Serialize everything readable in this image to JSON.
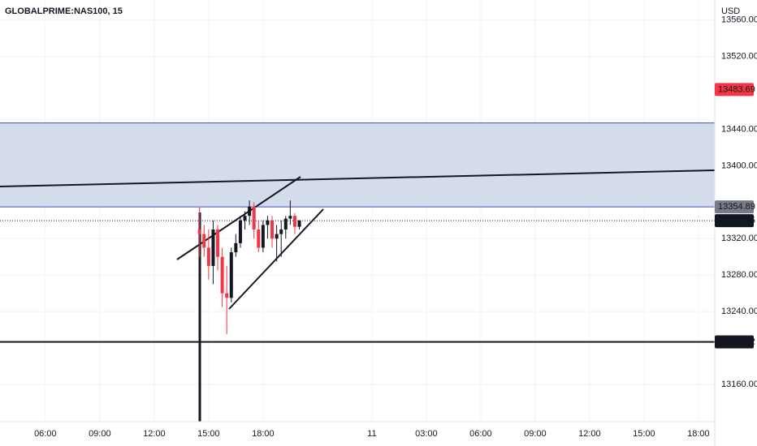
{
  "chart_data": {
    "type": "candlestick",
    "title": "GLOBALPRIME:NAS100, 15",
    "currency": "USD",
    "up_color": "#131722",
    "down_color": "#f23645",
    "grid": true,
    "xlim": [
      3.5,
      42.9
    ],
    "ylim": [
      13119,
      13582
    ],
    "xticks": [
      {
        "value": 6,
        "label": "06:00"
      },
      {
        "value": 9,
        "label": "09:00"
      },
      {
        "value": 12,
        "label": "12:00"
      },
      {
        "value": 15,
        "label": "15:00"
      },
      {
        "value": 18,
        "label": "18:00"
      },
      {
        "value": 24,
        "label": "11"
      },
      {
        "value": 27,
        "label": "03:00"
      },
      {
        "value": 30,
        "label": "06:00"
      },
      {
        "value": 33,
        "label": "09:00"
      },
      {
        "value": 36,
        "label": "12:00"
      },
      {
        "value": 39,
        "label": "15:00"
      },
      {
        "value": 42,
        "label": "18:00"
      }
    ],
    "yticks": [
      {
        "value": 13560,
        "label": "13560.00"
      },
      {
        "value": 13520,
        "label": "13520.00"
      },
      {
        "value": 13440,
        "label": "13440.00"
      },
      {
        "value": 13400,
        "label": "13400.00"
      },
      {
        "value": 13320,
        "label": "13320.00"
      },
      {
        "value": 13280,
        "label": "13280.00"
      },
      {
        "value": 13240,
        "label": "13240.00"
      },
      {
        "value": 13160,
        "label": "13160.00"
      }
    ],
    "x": [
      14.5,
      14.75,
      15.0,
      15.25,
      15.5,
      15.75,
      16.0,
      16.25,
      16.5,
      16.75,
      17.0,
      17.25,
      17.5,
      17.75,
      18.0,
      18.25,
      18.5,
      18.75,
      19.0,
      19.25,
      19.5,
      19.75,
      20.0
    ],
    "open": [
      13330,
      13325,
      13310,
      13290,
      13330,
      13300,
      13260,
      13255,
      13305,
      13315,
      13340,
      13345,
      13355,
      13330,
      13310,
      13335,
      13340,
      13320,
      13325,
      13330,
      13342,
      13345,
      13333
    ],
    "high": [
      13355,
      13335,
      13330,
      13340,
      13335,
      13310,
      13290,
      13310,
      13325,
      13345,
      13350,
      13362,
      13360,
      13340,
      13340,
      13345,
      13345,
      13335,
      13340,
      13345,
      13362,
      13348,
      13340
    ],
    "low": [
      13300,
      13300,
      13275,
      13270,
      13285,
      13245,
      13215,
      13250,
      13300,
      13310,
      13330,
      13335,
      13320,
      13305,
      13305,
      13320,
      13310,
      13295,
      13300,
      13320,
      13335,
      13325,
      13330
    ],
    "close": [
      13325,
      13310,
      13290,
      13330,
      13300,
      13260,
      13255,
      13305,
      13315,
      13340,
      13345,
      13355,
      13330,
      13310,
      13335,
      13340,
      13320,
      13325,
      13330,
      13342,
      13345,
      13333,
      13340
    ],
    "zone": {
      "top": 13447,
      "bottom": 13354.89,
      "color": "#cfd8ea",
      "edge": "#3f51b5"
    },
    "price_labels": [
      {
        "value": 13483.69,
        "color": "#f23645",
        "line": "none"
      },
      {
        "value": 13354.89,
        "color": "#787b86",
        "line": "none"
      },
      {
        "value": 13339.75,
        "color": "#131722",
        "line": "dotted"
      },
      {
        "value": 13206.62,
        "color": "#131722",
        "line": "solid"
      }
    ]
  }
}
